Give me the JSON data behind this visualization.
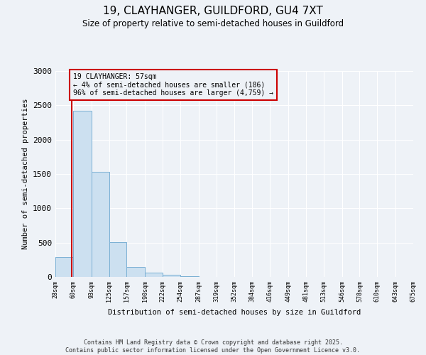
{
  "title": "19, CLAYHANGER, GUILDFORD, GU4 7XT",
  "subtitle": "Size of property relative to semi-detached houses in Guildford",
  "xlabel": "Distribution of semi-detached houses by size in Guildford",
  "ylabel": "Number of semi-detached properties",
  "property_size": 57,
  "property_label": "19 CLAYHANGER: 57sqm",
  "annotation_line1": "← 4% of semi-detached houses are smaller (186)",
  "annotation_line2": "96% of semi-detached houses are larger (4,759) →",
  "bin_edges": [
    28,
    60,
    93,
    125,
    157,
    190,
    222,
    254,
    287,
    319,
    352,
    384,
    416,
    449,
    481,
    513,
    546,
    578,
    610,
    643,
    675
  ],
  "bar_heights": [
    290,
    2420,
    1530,
    510,
    140,
    60,
    30,
    10,
    3,
    1,
    1,
    0,
    0,
    0,
    0,
    0,
    0,
    0,
    0,
    0
  ],
  "bar_color": "#cce0f0",
  "bar_edgecolor": "#7ab0d4",
  "marker_color": "#cc0000",
  "ylim": [
    0,
    3000
  ],
  "yticks": [
    0,
    500,
    1000,
    1500,
    2000,
    2500,
    3000
  ],
  "background_color": "#eef2f7",
  "grid_color": "#ffffff",
  "footer_line1": "Contains HM Land Registry data © Crown copyright and database right 2025.",
  "footer_line2": "Contains public sector information licensed under the Open Government Licence v3.0."
}
